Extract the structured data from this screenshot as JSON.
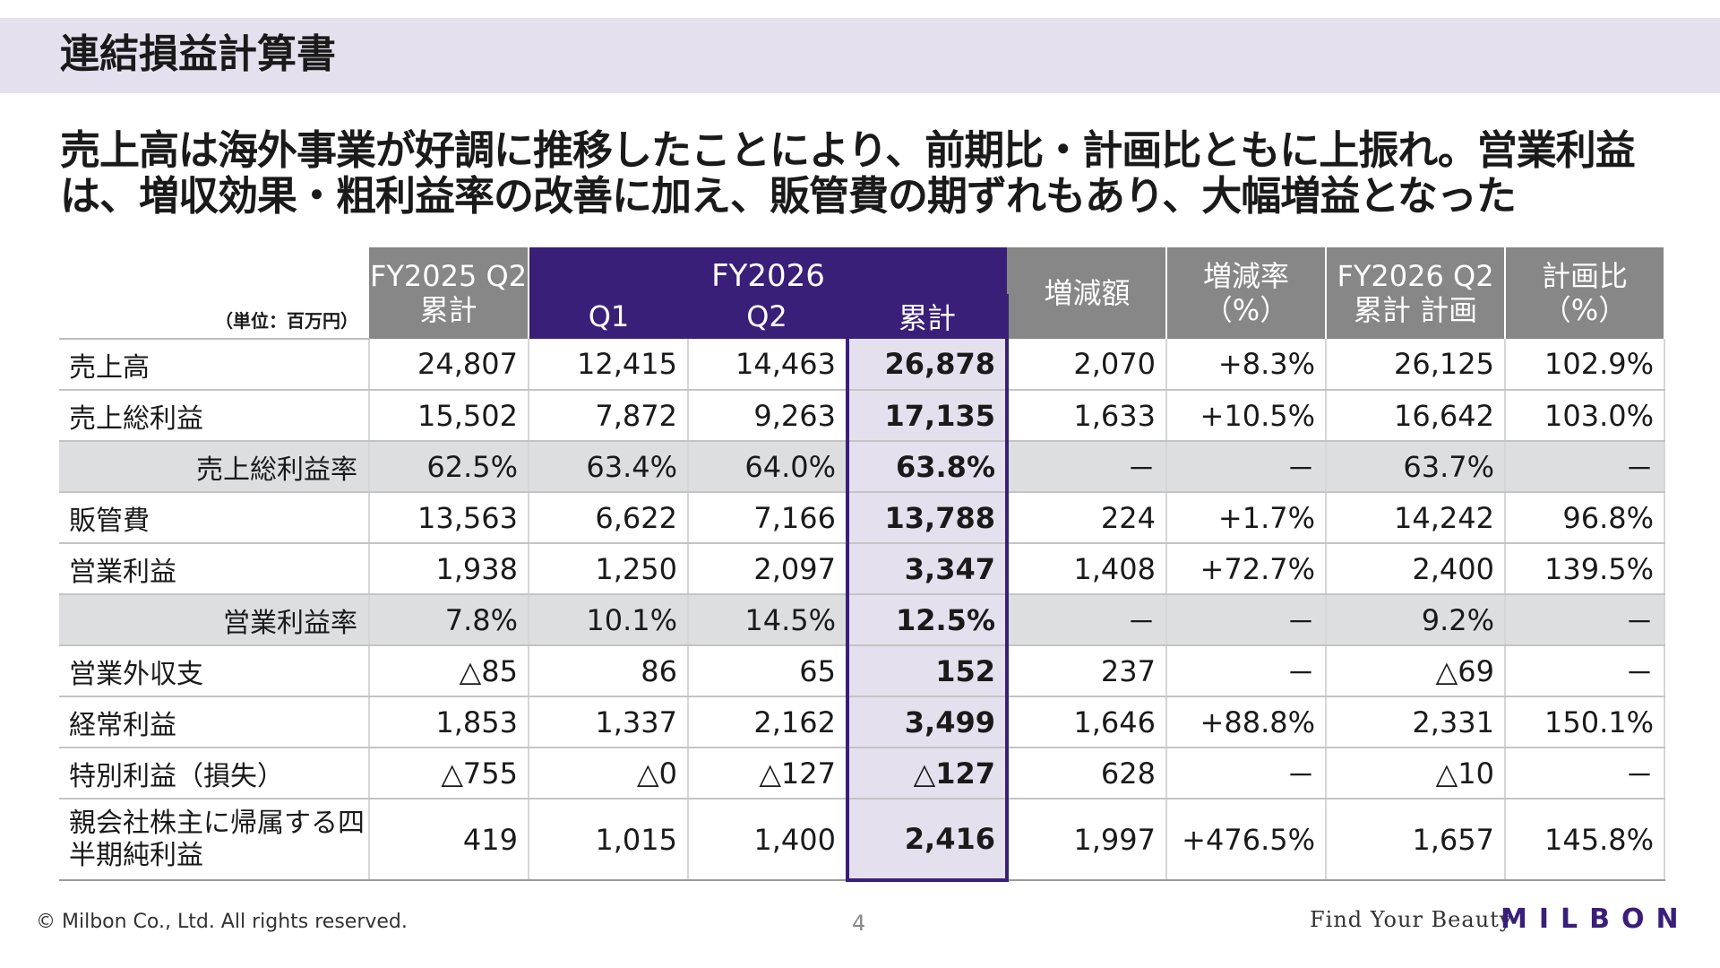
{
  "title": "連結損益計算書",
  "headline": "売上高は海外事業が好調に推移したことにより、前期比・計画比ともに上振れ。営業利益は、増収効果・粗利益率の改善に加え、販管費の期ずれもあり、大幅増益となった",
  "table": {
    "unit": "（単位：百万円）",
    "headers": {
      "fy2025": "FY2025 Q2累計",
      "fy2026": "FY2026",
      "q1": "Q1",
      "q2": "Q2",
      "cumulative": "累計",
      "change": "増減額",
      "change_rate": "増減率 （%）",
      "plan": "FY2026 Q2累計 計画",
      "plan_ratio": "計画比 （%）"
    },
    "rows": [
      {
        "label": "売上高",
        "fy2025": "24,807",
        "q1": "12,415",
        "q2": "14,463",
        "cum": "26,878",
        "chg": "2,070",
        "rate": "+8.3%",
        "plan": "26,125",
        "ratio": "102.9%"
      },
      {
        "label": "売上総利益",
        "fy2025": "15,502",
        "q1": "7,872",
        "q2": "9,263",
        "cum": "17,135",
        "chg": "1,633",
        "rate": "+10.5%",
        "plan": "16,642",
        "ratio": "103.0%"
      },
      {
        "label": "売上総利益率",
        "fy2025": "62.5%",
        "q1": "63.4%",
        "q2": "64.0%",
        "cum": "63.8%",
        "chg": "－",
        "rate": "－",
        "plan": "63.7%",
        "ratio": "－"
      },
      {
        "label": "販管費",
        "fy2025": "13,563",
        "q1": "6,622",
        "q2": "7,166",
        "cum": "13,788",
        "chg": "224",
        "rate": "+1.7%",
        "plan": "14,242",
        "ratio": "96.8%"
      },
      {
        "label": "営業利益",
        "fy2025": "1,938",
        "q1": "1,250",
        "q2": "2,097",
        "cum": "3,347",
        "chg": "1,408",
        "rate": "+72.7%",
        "plan": "2,400",
        "ratio": "139.5%"
      },
      {
        "label": "営業利益率",
        "fy2025": "7.8%",
        "q1": "10.1%",
        "q2": "14.5%",
        "cum": "12.5%",
        "chg": "－",
        "rate": "－",
        "plan": "9.2%",
        "ratio": "－"
      },
      {
        "label": "営業外収支",
        "fy2025": "△85",
        "q1": "86",
        "q2": "65",
        "cum": "152",
        "chg": "237",
        "rate": "－",
        "plan": "△69",
        "ratio": "－"
      },
      {
        "label": "経常利益",
        "fy2025": "1,853",
        "q1": "1,337",
        "q2": "2,162",
        "cum": "3,499",
        "chg": "1,646",
        "rate": "+88.8%",
        "plan": "2,331",
        "ratio": "150.1%"
      },
      {
        "label": "特別利益（損失）",
        "fy2025": "△755",
        "q1": "△0",
        "q2": "△127",
        "cum": "△127",
        "chg": "628",
        "rate": "－",
        "plan": "△10",
        "ratio": "－"
      },
      {
        "label": "親会社株主に帰属する四半期純利益",
        "fy2025": "419",
        "q1": "1,015",
        "q2": "1,400",
        "cum": "2,416",
        "chg": "1,997",
        "rate": "+476.5%",
        "plan": "1,657",
        "ratio": "145.8%"
      }
    ]
  },
  "footer": {
    "copyright": "© Milbon Co., Ltd. All rights reserved.",
    "page": "4",
    "tagline": "Find Your Beauty",
    "logo": "MILBON"
  },
  "colors": {
    "accent": "#3a1f78",
    "header_gray": "#878787",
    "title_band": "#e4e0ee",
    "shade": "#dcdedf"
  }
}
